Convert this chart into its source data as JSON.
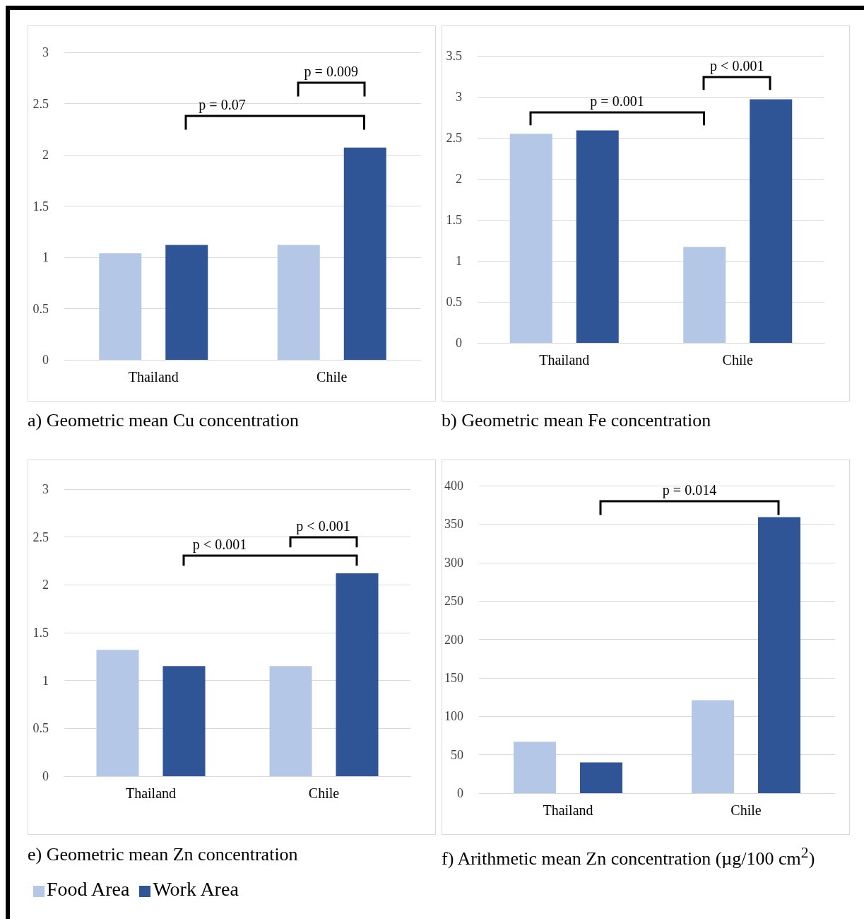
{
  "chart_data": [
    {
      "type": "bar",
      "title": "a) Geometric mean Cu concentration",
      "categories": [
        "Thailand",
        "Chile"
      ],
      "series": [
        {
          "color": "#b4c7e7",
          "values": [
            1.04,
            1.12
          ]
        },
        {
          "color": "#2f5597",
          "values": [
            1.12,
            2.07
          ]
        }
      ],
      "ylim": [
        0,
        3
      ],
      "yticks": [
        0,
        0.5,
        1,
        1.5,
        2,
        2.5,
        3
      ],
      "grid": "y",
      "annotations": [
        "p = 0.009",
        "p = 0.07"
      ]
    },
    {
      "type": "bar",
      "title": "b) Geometric mean Fe concentration",
      "categories": [
        "Thailand",
        "Chile"
      ],
      "series": [
        {
          "color": "#b4c7e7",
          "values": [
            2.55,
            1.17
          ]
        },
        {
          "color": "#2f5597",
          "values": [
            2.59,
            2.97
          ]
        }
      ],
      "ylim": [
        0,
        3.5
      ],
      "yticks": [
        0,
        0.5,
        1,
        1.5,
        2,
        2.5,
        3,
        3.5
      ],
      "grid": "y",
      "annotations": [
        "p < 0.001",
        "p = 0.001"
      ]
    },
    {
      "type": "bar",
      "title": "e) Geometric mean Zn concentration",
      "categories": [
        "Thailand",
        "Chile"
      ],
      "series": [
        {
          "name": "Food Area",
          "color": "#b4c7e7",
          "values": [
            1.32,
            1.15
          ]
        },
        {
          "name": "Work Area",
          "color": "#2f5597",
          "values": [
            1.15,
            2.12
          ]
        }
      ],
      "ylim": [
        0,
        3
      ],
      "yticks": [
        0,
        0.5,
        1,
        1.5,
        2,
        2.5,
        3
      ],
      "grid": "y",
      "legend": "bottom left",
      "annotations": [
        "p < 0.001",
        "p < 0.001"
      ]
    },
    {
      "type": "bar",
      "title": "f) Arithmetic mean Zn concentration (µg/100 cm$^{2}$)",
      "categories": [
        "Thailand",
        "Chile"
      ],
      "series": [
        {
          "color": "#b4c7e7",
          "values": [
            67,
            121
          ]
        },
        {
          "color": "#2f5597",
          "values": [
            40,
            359
          ]
        }
      ],
      "ylim": [
        0,
        400
      ],
      "yticks": [
        0,
        50,
        100,
        150,
        200,
        250,
        300,
        350,
        400
      ],
      "grid": "y",
      "annotations": [
        "p = 0.014"
      ]
    }
  ]
}
